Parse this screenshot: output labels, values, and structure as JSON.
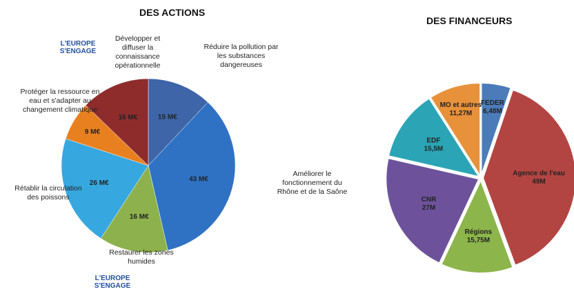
{
  "chart_data": [
    {
      "type": "pie",
      "title": "DES ACTIONS",
      "categories": [
        "Réduire la pollution par les substances dangereuses",
        "Améliorer le fonctionnement du Rhône et de la Saône",
        "Restaurer les zones humides",
        "Rétablir la circulation des poissons",
        "Protéger la ressource en eau et s'adapter au changement climatique",
        "Développer et diffuser la connaissance opérationnelle"
      ],
      "values": [
        15,
        43,
        16,
        26,
        9,
        16
      ],
      "value_labels": [
        "15 M€",
        "43 M€",
        "16 M€",
        "26 M€",
        "9 M€",
        "16 M€"
      ],
      "colors": [
        "#3d65a8",
        "#2f72c4",
        "#8db14c",
        "#36a7df",
        "#e9801f",
        "#8e2c2c"
      ]
    },
    {
      "type": "pie",
      "title": "DES FINANCEURS",
      "categories": [
        "FEDER",
        "Agence de l'eau",
        "Régions",
        "CNR",
        "EDF",
        "MO et autres"
      ],
      "values": [
        6.48,
        49,
        15.75,
        27,
        15.5,
        11.27
      ],
      "value_labels": [
        "6,48M",
        "49M",
        "15,75M",
        "27M",
        "15,5M",
        "11,27M"
      ],
      "colors": [
        "#4b7bb9",
        "#b24542",
        "#8cb54b",
        "#6d529b",
        "#2ba5b5",
        "#e8913b"
      ]
    }
  ],
  "logos": [
    {
      "line1": "L'EUROPE",
      "line2": "S'ENGAGE"
    },
    {
      "line1": "L'EUROPE",
      "line2": "S'ENGAGE"
    }
  ]
}
